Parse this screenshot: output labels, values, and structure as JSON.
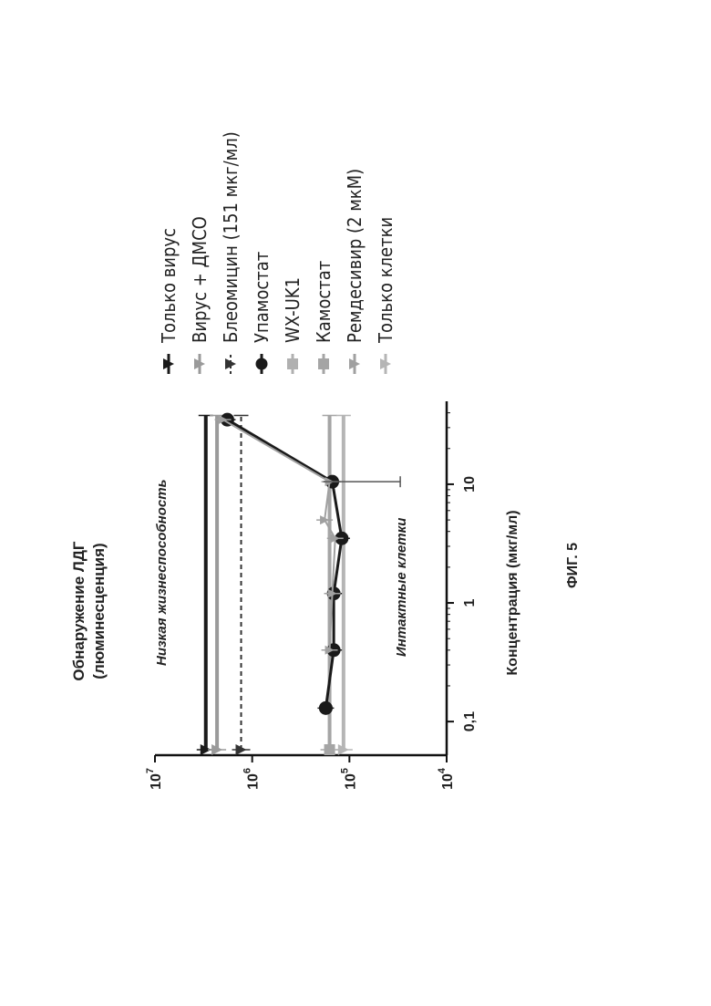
{
  "figure_label": "ФИГ. 5",
  "chart_data": {
    "type": "line",
    "orientation": "rotated-90-counterclockwise",
    "xlabel": "Концентрация (мкг/мл)",
    "ylabel_line1": "Обнаружение ЛДГ",
    "ylabel_line2": "(люминесценция)",
    "x_scale": "log",
    "y_scale": "log",
    "xlim": [
      0.06,
      50
    ],
    "ylim": [
      10000,
      10000000
    ],
    "x_ticks": [
      {
        "value": 0.1,
        "label": "0,1"
      },
      {
        "value": 1,
        "label": "1"
      },
      {
        "value": 10,
        "label": "10"
      }
    ],
    "y_ticks": [
      {
        "value": 10000000,
        "base": "10",
        "exp": "7"
      },
      {
        "value": 1000000,
        "base": "10",
        "exp": "6"
      },
      {
        "value": 100000,
        "base": "10",
        "exp": "5"
      },
      {
        "value": 10000,
        "base": "10",
        "exp": "4"
      }
    ],
    "annotations": {
      "top": "Низкая жизнеспособность",
      "bottom": "Интактные клетки"
    },
    "grid": false,
    "legend_position": "right",
    "series": [
      {
        "name": "Только вирус",
        "style": "reference",
        "color": "#1a1a1a",
        "marker": "triangle-down",
        "value": 3000000
      },
      {
        "name": "Вирус + ДМСО",
        "style": "reference",
        "color": "#9a9a9a",
        "marker": "triangle-down",
        "value": 2300000
      },
      {
        "name": "Блеомицин (151 мкг/мл)",
        "style": "reference-dashed",
        "color": "#333333",
        "marker": "triangle-down",
        "value": 1300000
      },
      {
        "name": "Упамостат",
        "style": "line",
        "color": "#1a1a1a",
        "marker": "circle",
        "x": [
          0.13,
          0.4,
          1.2,
          3.5,
          10.5,
          35
        ],
        "y": [
          175000,
          145000,
          145000,
          120000,
          150000,
          1800000
        ]
      },
      {
        "name": "WX-UK1",
        "style": "line",
        "color": "#b0b0b0",
        "marker": "square",
        "x": [],
        "y": []
      },
      {
        "name": "Камостат",
        "style": "reference",
        "color": "#a5a5a5",
        "marker": "square",
        "value": 160000
      },
      {
        "name": "Ремдесивир (2 мкМ)",
        "style": "line",
        "color": "#a0a0a0",
        "marker": "triangle-down",
        "x": [
          0.4,
          1.2,
          3.5,
          5,
          10.5,
          35
        ],
        "y": [
          160000,
          150000,
          140000,
          180000,
          160000,
          2000000
        ]
      },
      {
        "name": "Только клетки",
        "style": "reference",
        "color": "#b5b5b5",
        "marker": "triangle-down",
        "value": 115000
      }
    ]
  }
}
